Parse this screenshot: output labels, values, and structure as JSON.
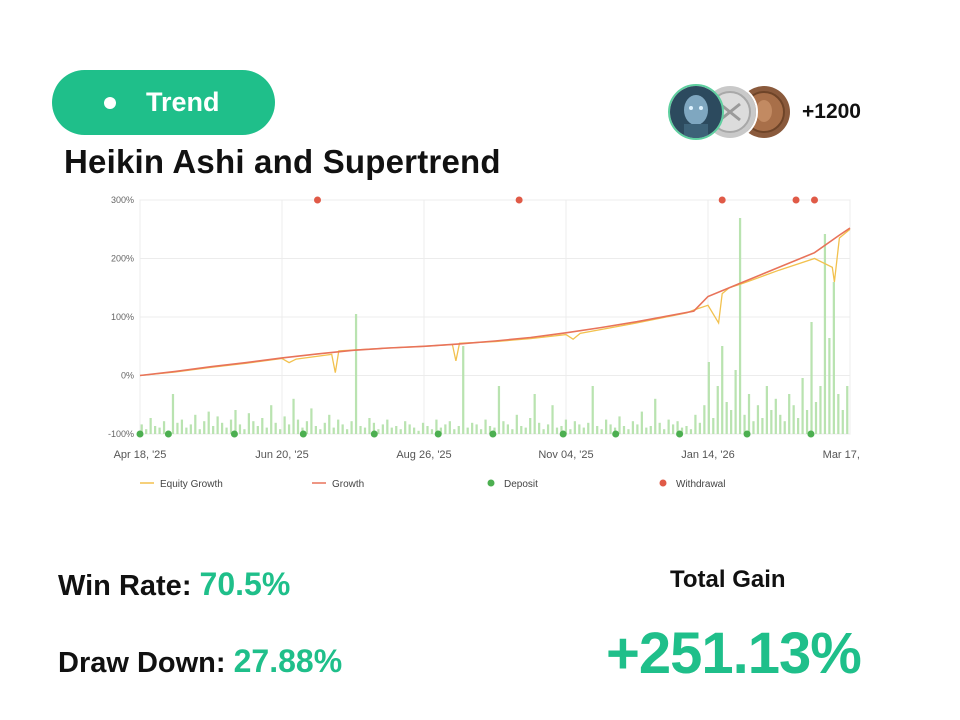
{
  "tag": {
    "label": "Trend"
  },
  "followers": {
    "count": "+1200"
  },
  "strategy": {
    "title": "Heikin Ashi and Supertrend"
  },
  "stats": {
    "win_rate_label": "Win Rate",
    "win_rate_value": "70.5%",
    "draw_down_label": "Draw Down",
    "draw_down_value": "27.88%",
    "total_gain_label": "Total Gain",
    "total_gain_value": "+251.13%"
  },
  "colors": {
    "accent": "#1fbf8a",
    "equity_line": "#f2c14e",
    "growth_line": "#e8735a",
    "deposit": "#4caf50",
    "withdrawal": "#e05a47",
    "volume_bar": "#b9e3b0"
  },
  "chart_data": {
    "type": "line",
    "x_ticks": [
      "Apr 18, '25",
      "Jun 20, '25",
      "Aug 26, '25",
      "Nov 04, '25",
      "Jan 14, '26",
      "Mar 17, '26"
    ],
    "y_ticks": [
      "300%",
      "200%",
      "100%",
      "0%",
      "-100%"
    ],
    "ylim": [
      -100,
      300
    ],
    "grid": true,
    "legend_position": "bottom",
    "legend": [
      "Equity Growth",
      "Growth",
      "Deposit",
      "Withdrawal"
    ],
    "series": [
      {
        "name": "Growth",
        "x": [
          0,
          0.05,
          0.1,
          0.15,
          0.2,
          0.25,
          0.3,
          0.35,
          0.4,
          0.45,
          0.5,
          0.55,
          0.6,
          0.65,
          0.7,
          0.78,
          0.8,
          0.85,
          0.9,
          0.95,
          0.985,
          1.0
        ],
        "values": [
          0,
          7,
          15,
          22,
          30,
          37,
          43,
          47,
          50,
          54,
          59,
          65,
          73,
          82,
          92,
          110,
          135,
          160,
          185,
          210,
          240,
          252
        ]
      },
      {
        "name": "Equity Growth",
        "x": [
          0,
          0.05,
          0.1,
          0.15,
          0.2,
          0.21,
          0.22,
          0.27,
          0.275,
          0.28,
          0.35,
          0.4,
          0.44,
          0.445,
          0.45,
          0.5,
          0.55,
          0.6,
          0.61,
          0.62,
          0.7,
          0.77,
          0.78,
          0.8,
          0.815,
          0.82,
          0.83,
          0.85,
          0.9,
          0.95,
          0.975,
          0.978,
          0.985,
          1.0
        ],
        "values": [
          0,
          6,
          14,
          21,
          29,
          22,
          28,
          36,
          5,
          42,
          47,
          50,
          53,
          25,
          55,
          58,
          63,
          70,
          62,
          72,
          90,
          107,
          112,
          120,
          90,
          140,
          150,
          158,
          180,
          200,
          185,
          160,
          235,
          250
        ]
      }
    ],
    "bar_series": {
      "name": "volume",
      "values": [
        6,
        3,
        10,
        5,
        4,
        8,
        2,
        25,
        7,
        9,
        4,
        6,
        12,
        3,
        8,
        14,
        5,
        11,
        7,
        4,
        9,
        15,
        6,
        3,
        13,
        8,
        5,
        10,
        4,
        18,
        7,
        3,
        11,
        6,
        22,
        9,
        4,
        8,
        16,
        5,
        3,
        7,
        12,
        4,
        9,
        6,
        3,
        8,
        75,
        5,
        4,
        10,
        7,
        3,
        6,
        9,
        4,
        5,
        3,
        8,
        6,
        4,
        2,
        7,
        5,
        3,
        9,
        4,
        6,
        8,
        3,
        5,
        55,
        4,
        7,
        6,
        3,
        9,
        5,
        4,
        30,
        8,
        6,
        3,
        12,
        5,
        4,
        10,
        25,
        7,
        3,
        6,
        18,
        4,
        5,
        9,
        3,
        8,
        6,
        4,
        7,
        30,
        5,
        3,
        9,
        6,
        4,
        11,
        5,
        3,
        8,
        6,
        14,
        4,
        5,
        22,
        7,
        3,
        9,
        6,
        8,
        4,
        5,
        3,
        12,
        7,
        18,
        45,
        10,
        30,
        55,
        20,
        15,
        40,
        135,
        12,
        25,
        8,
        18,
        10,
        30,
        15,
        22,
        12,
        8,
        25,
        18,
        10,
        35,
        15,
        70,
        20,
        30,
        125,
        60,
        95,
        25,
        15,
        30
      ],
      "ylim": [
        0,
        140
      ]
    },
    "deposits_x": [
      0.0,
      0.04,
      0.133,
      0.23,
      0.33,
      0.42,
      0.497,
      0.596,
      0.67,
      0.76,
      0.855,
      0.945
    ],
    "withdrawals_x": [
      0.25,
      0.534,
      0.82,
      0.924,
      0.95
    ]
  }
}
